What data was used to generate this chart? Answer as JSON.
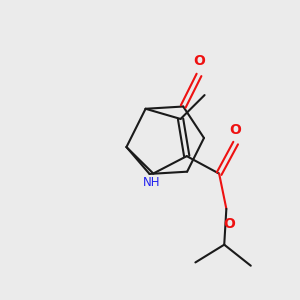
{
  "bg_color": "#ebebeb",
  "bond_color": "#1a1a1a",
  "N_color": "#2222ee",
  "O_color": "#ee1111",
  "lw": 1.5,
  "fs": 8.5,
  "xlim": [
    0,
    10
  ],
  "ylim": [
    0,
    10
  ]
}
